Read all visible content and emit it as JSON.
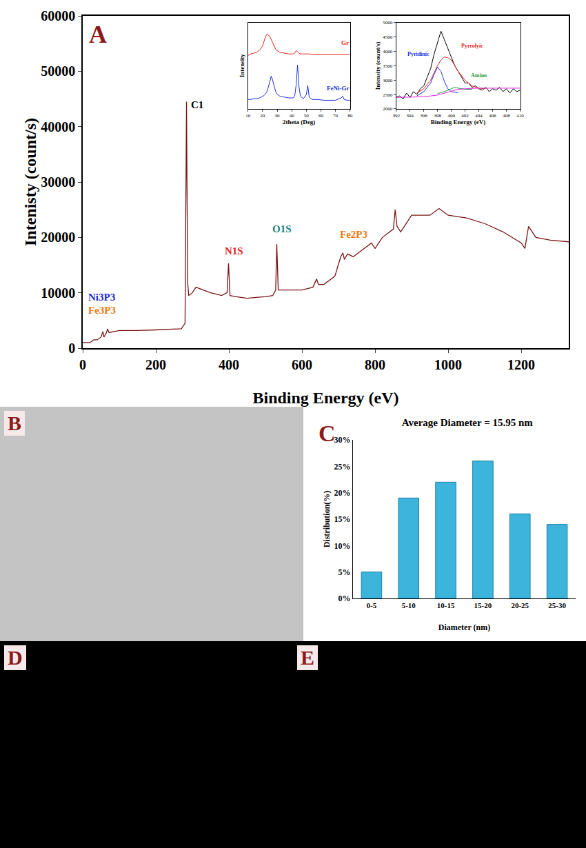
{
  "chart_data": [
    {
      "type": "line",
      "x_label": "Binding Energy (eV)",
      "y_label": "Intenisty (count/s)",
      "x": [
        0,
        20,
        30,
        40,
        50,
        55,
        58,
        65,
        68,
        72,
        100,
        150,
        200,
        250,
        270,
        280,
        284,
        287,
        290,
        300,
        310,
        330,
        350,
        380,
        395,
        399,
        403,
        420,
        450,
        480,
        500,
        520,
        528,
        531,
        535,
        560,
        600,
        630,
        640,
        645,
        660,
        690,
        706,
        712,
        716,
        720,
        725,
        740,
        760,
        780,
        790,
        800,
        820,
        850,
        855,
        860,
        870,
        880,
        900,
        950,
        975,
        1000,
        1050,
        1100,
        1150,
        1200,
        1210,
        1220,
        1240,
        1280,
        1330
      ],
      "values": [
        1000,
        1000,
        1500,
        1500,
        2000,
        3000,
        2000,
        2800,
        3500,
        2800,
        3200,
        3200,
        3300,
        3400,
        3500,
        4500,
        44500,
        12000,
        9500,
        10000,
        11000,
        10500,
        10000,
        9500,
        10000,
        15300,
        9500,
        9300,
        9000,
        9200,
        9300,
        9500,
        10500,
        18800,
        10500,
        10500,
        10500,
        11000,
        12500,
        11500,
        11500,
        13000,
        16500,
        17200,
        16000,
        16500,
        17000,
        16500,
        17500,
        18500,
        19000,
        18000,
        20000,
        21500,
        25000,
        22000,
        21000,
        22000,
        24000,
        24000,
        25200,
        24000,
        23500,
        22500,
        21000,
        19000,
        18000,
        22000,
        20000,
        19500,
        19200
      ],
      "color": "#7b1416",
      "xlim": [
        0,
        1330
      ],
      "xticks": [
        0,
        200,
        400,
        600,
        800,
        1000,
        1200
      ],
      "ylim": [
        0,
        60000
      ],
      "yticks": [
        0,
        10000,
        20000,
        30000,
        40000,
        50000,
        60000
      ],
      "annotations": [
        {
          "text": "C1",
          "x": 292,
          "y": 44000,
          "color": "#000000"
        },
        {
          "text": "N1S",
          "x": 385,
          "y": 17500,
          "color": "#e02020"
        },
        {
          "text": "O1S",
          "x": 515,
          "y": 21500,
          "color": "#1a8080"
        },
        {
          "text": "Fe2P3",
          "x": 700,
          "y": 20500,
          "color": "#f07a10"
        },
        {
          "text": "Ni3P3",
          "x": 12,
          "y": 9200,
          "color": "#1a2ad0"
        },
        {
          "text": "Fe3P3",
          "x": 12,
          "y": 6800,
          "color": "#f07a10"
        }
      ]
    },
    {
      "type": "line",
      "x_label": "2theta (Deg)",
      "y_label": "Intensity",
      "x": [
        10,
        12,
        14,
        16,
        18,
        20,
        21,
        22,
        23,
        24,
        25,
        26,
        27,
        28,
        29,
        30,
        32,
        35,
        38,
        41,
        42,
        43,
        44,
        45,
        46,
        48,
        50,
        51,
        52,
        54,
        58,
        62,
        66,
        70,
        74,
        75,
        76,
        78,
        80
      ],
      "series": [
        {
          "name": "Gr",
          "color": "#e8201a",
          "values": [
            68,
            70,
            71,
            72,
            75,
            80,
            86,
            92,
            95,
            94,
            92,
            88,
            83,
            79,
            76,
            74,
            72,
            71,
            70,
            70,
            71,
            74,
            73,
            71,
            70,
            70,
            70,
            70,
            70,
            69,
            69,
            69,
            69,
            69,
            69,
            69,
            69,
            69,
            69
          ]
        },
        {
          "name": "FeNi-Gr",
          "color": "#1a2ee0",
          "values": [
            12,
            12,
            13,
            13,
            14,
            16,
            17,
            19,
            22,
            28,
            35,
            42,
            36,
            28,
            22,
            19,
            16,
            15,
            14,
            14,
            16,
            30,
            56,
            28,
            16,
            13,
            18,
            30,
            15,
            12,
            12,
            11,
            11,
            11,
            14,
            16,
            12,
            11,
            11
          ]
        }
      ],
      "xlim": [
        10,
        80
      ],
      "xticks": [
        10,
        20,
        30,
        40,
        50,
        60,
        70,
        80
      ],
      "ylim": [
        0,
        110
      ],
      "tick_labels": "x"
    },
    {
      "type": "line",
      "x_label": "Binding Energy (eV)",
      "y_label": "Intensity (count/s)",
      "series": [
        {
          "color": "#000000",
          "x": [
            392,
            392.5,
            393,
            393.5,
            394,
            394.5,
            395,
            395.5,
            396,
            396.5,
            397,
            397.5,
            398,
            398.5,
            399,
            399.5,
            400,
            400.5,
            401,
            401.5,
            402,
            402.5,
            403,
            403.5,
            404,
            404.5,
            405,
            405.5,
            406,
            406.5,
            407,
            407.5,
            408,
            408.5,
            409,
            409.5,
            410
          ],
          "values": [
            2400,
            2450,
            2350,
            2550,
            2400,
            2600,
            2500,
            2700,
            2800,
            3100,
            3400,
            3900,
            4300,
            4700,
            4400,
            4100,
            3800,
            3500,
            3300,
            3100,
            2900,
            2900,
            2750,
            2800,
            2700,
            2650,
            2750,
            2600,
            2700,
            2650,
            2750,
            2600,
            2700,
            2550,
            2700,
            2600,
            2650
          ]
        },
        {
          "color": "#e8201a",
          "x": [
            395,
            396,
            397,
            397.5,
            398,
            398.5,
            399,
            399.5,
            400,
            400.5,
            401,
            402,
            403,
            404,
            405
          ],
          "values": [
            2550,
            2700,
            3000,
            3250,
            3500,
            3700,
            3800,
            3780,
            3700,
            3500,
            3300,
            3000,
            2800,
            2720,
            2700
          ]
        },
        {
          "color": "#1a2ee0",
          "x": [
            395,
            396,
            397,
            397.5,
            398,
            398.5,
            399,
            399.5,
            400,
            401
          ],
          "values": [
            2450,
            2600,
            2900,
            3200,
            3450,
            3300,
            2950,
            2700,
            2600,
            2560
          ]
        },
        {
          "color": "#1a9a3a",
          "x": [
            398,
            399,
            400,
            400.5,
            401,
            402,
            403
          ],
          "values": [
            2530,
            2600,
            2700,
            2750,
            2720,
            2680,
            2680
          ]
        },
        {
          "color": "#e020e0",
          "x": [
            392,
            396,
            398,
            399,
            400,
            401,
            402,
            404,
            410
          ],
          "values": [
            2400,
            2420,
            2480,
            2550,
            2620,
            2680,
            2700,
            2720,
            2720
          ]
        }
      ],
      "xlim": [
        392,
        410
      ],
      "xticks": [
        392,
        394,
        396,
        398,
        400,
        402,
        404,
        406,
        408,
        410
      ],
      "ylim": [
        2000,
        5000
      ],
      "yticks": [
        2000,
        2500,
        3000,
        3500,
        4000,
        4500,
        5000
      ],
      "annotations": [
        {
          "text": "Pyrrolyic",
          "x": 403,
          "y": 4200,
          "color": "#e8201a"
        },
        {
          "text": "Pyridinic",
          "x": 395.2,
          "y": 3900,
          "color": "#1a2ee0"
        },
        {
          "text": "Amino",
          "x": 404,
          "y": 3150,
          "color": "#1a9a3a"
        }
      ]
    },
    {
      "type": "bar",
      "title": "Average Diameter = 15.95 nm",
      "x_label": "Diameter (nm)",
      "y_label": "Distribution(%)",
      "categories": [
        "0-5",
        "5-10",
        "10-15",
        "15-20",
        "20-25",
        "25-30"
      ],
      "values": [
        5,
        19,
        22,
        26,
        16,
        14
      ],
      "color": "#3cb4dc",
      "ylim": [
        0,
        30
      ],
      "yticks": [
        {
          "value": 0,
          "label": "0%"
        },
        {
          "value": 5,
          "label": "5%"
        },
        {
          "value": 10,
          "label": "10%"
        },
        {
          "value": 15,
          "label": "15%"
        },
        {
          "value": 20,
          "label": "20%"
        },
        {
          "value": 25,
          "label": "25%"
        },
        {
          "value": 30,
          "label": "30%"
        }
      ]
    }
  ],
  "panel_labels": {
    "spectrum": "A",
    "tem_image": "B",
    "size_distribution": "C",
    "map_green": "D",
    "map_red": "E"
  }
}
